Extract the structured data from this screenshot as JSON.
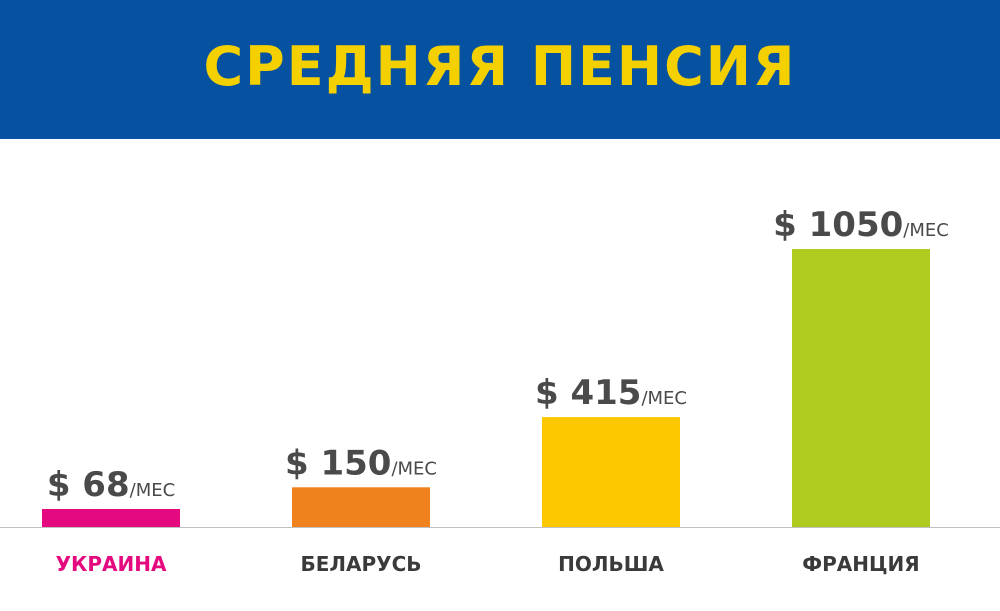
{
  "header": {
    "title": "СРЕДНЯЯ ПЕНСИЯ",
    "background_color": "#0652a0",
    "title_color": "#f5d000"
  },
  "chart_data": {
    "type": "bar",
    "title": "СРЕДНЯЯ ПЕНСИЯ",
    "categories": [
      "УКРАИНА",
      "БЕЛАРУСЬ",
      "ПОЛЬША",
      "ФРАНЦИЯ"
    ],
    "values": [
      68,
      150,
      415,
      1050
    ],
    "value_prefix": "$",
    "value_unit": "/МЕС",
    "data_labels": [
      "$ 68",
      "$ 150",
      "$ 415",
      "$ 1050"
    ],
    "bar_colors": [
      "#e5097f",
      "#f0821e",
      "#fdc800",
      "#afcb1f"
    ],
    "category_label_colors": [
      "#e5097f",
      "#3a3a3a",
      "#3a3a3a",
      "#3a3a3a"
    ],
    "axis_line_color": "#c0c0c0",
    "grid": false,
    "legend": "none",
    "xlabel": "",
    "ylabel": ""
  }
}
